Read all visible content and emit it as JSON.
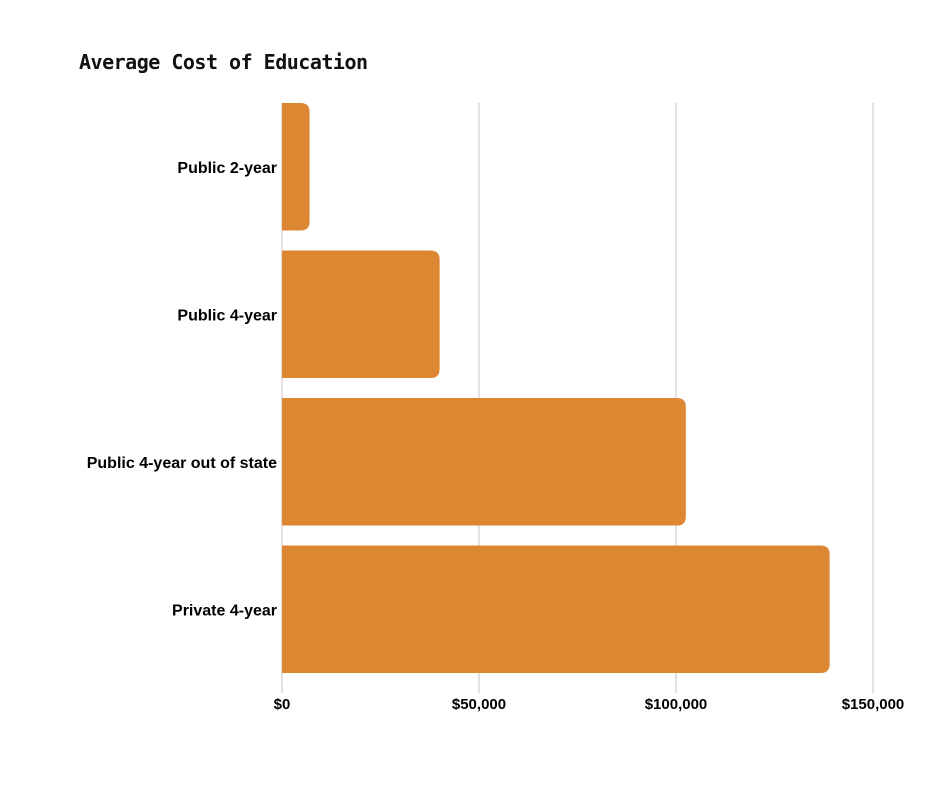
{
  "chart_data": {
    "type": "bar",
    "orientation": "horizontal",
    "title": "Average Cost of Education",
    "categories": [
      "Public 2-year",
      "Public 4-year",
      "Public 4-year out of state",
      "Private 4-year"
    ],
    "values": [
      7000,
      40000,
      102500,
      139000
    ],
    "xlim": [
      0,
      150000
    ],
    "xticks": [
      0,
      50000,
      100000,
      150000
    ],
    "xtick_labels": [
      "$0",
      "$50,000",
      "$100,000",
      "$150,000"
    ],
    "xlabel": "",
    "ylabel": "",
    "grid": "vertical",
    "legend": "none",
    "bar_color": "#dd8733"
  }
}
